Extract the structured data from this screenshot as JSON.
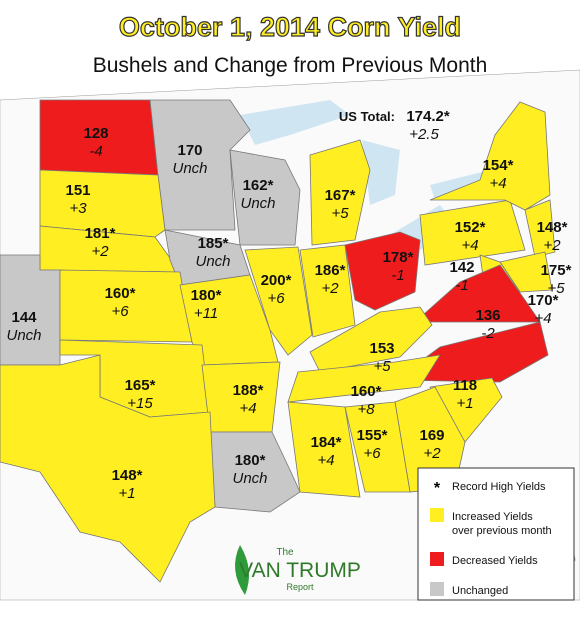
{
  "title": "October 1, 2014 Corn Yield",
  "subtitle": "Bushels and Change from Previous Month",
  "us_total": {
    "label": "US Total:",
    "value": "174.2*",
    "change": "+2.5"
  },
  "states": [
    {
      "value": "128",
      "change": "-4",
      "color": "#ee1c1c"
    },
    {
      "value": "170",
      "change": "Unch",
      "color": "#c8c8c8"
    },
    {
      "value": "151",
      "change": "+3",
      "color": "#ffee22"
    },
    {
      "value": "162*",
      "change": "Unch",
      "color": "#c8c8c8"
    },
    {
      "value": "181*",
      "change": "+2",
      "color": "#ffee22"
    },
    {
      "value": "185*",
      "change": "Unch",
      "color": "#c8c8c8"
    },
    {
      "value": "144",
      "change": "Unch",
      "color": "#c8c8c8"
    },
    {
      "value": "160*",
      "change": "+6",
      "color": "#ffee22"
    },
    {
      "value": "180*",
      "change": "+11",
      "color": "#ffee22"
    },
    {
      "value": "200*",
      "change": "+6",
      "color": "#ffee22"
    },
    {
      "value": "186*",
      "change": "+2",
      "color": "#ffee22"
    },
    {
      "value": "167*",
      "change": "+5",
      "color": "#ffee22"
    },
    {
      "value": "178*",
      "change": "-1",
      "color": "#ee1c1c"
    },
    {
      "value": "152*",
      "change": "+4",
      "color": "#ffee22"
    },
    {
      "value": "154*",
      "change": "+4",
      "color": "#ffee22"
    },
    {
      "value": "148*",
      "change": "+2",
      "color": "#ffee22"
    },
    {
      "value": "175*",
      "change": "+5",
      "color": "#ffee22"
    },
    {
      "value": "170*",
      "change": "+4",
      "color": "#ffee22"
    },
    {
      "value": "142",
      "change": "-1",
      "color": "#ee1c1c"
    },
    {
      "value": "136",
      "change": "-2",
      "color": "#ee1c1c"
    },
    {
      "value": "153",
      "change": "+5",
      "color": "#ffee22"
    },
    {
      "value": "160*",
      "change": "+8",
      "color": "#ffee22"
    },
    {
      "value": "165*",
      "change": "+15",
      "color": "#ffee22"
    },
    {
      "value": "188*",
      "change": "+4",
      "color": "#ffee22"
    },
    {
      "value": "118",
      "change": "+1",
      "color": "#ffee22"
    },
    {
      "value": "169",
      "change": "+2",
      "color": "#ffee22"
    },
    {
      "value": "155*",
      "change": "+6",
      "color": "#ffee22"
    },
    {
      "value": "184*",
      "change": "+4",
      "color": "#ffee22"
    },
    {
      "value": "180*",
      "change": "Unch",
      "color": "#c8c8c8"
    },
    {
      "value": "148*",
      "change": "+1",
      "color": "#ffee22"
    }
  ],
  "legend": [
    {
      "symbol": "*",
      "lines": [
        "Record High Yields"
      ]
    },
    {
      "color": "#ffee22",
      "lines": [
        "Increased Yields",
        "over previous month"
      ]
    },
    {
      "color": "#ee1c1c",
      "lines": [
        "Decreased Yields"
      ]
    },
    {
      "color": "#c8c8c8",
      "lines": [
        "Unchanged"
      ]
    }
  ],
  "logo": {
    "top": "The",
    "name": "VAN TRUMP",
    "bottom": "Report"
  }
}
